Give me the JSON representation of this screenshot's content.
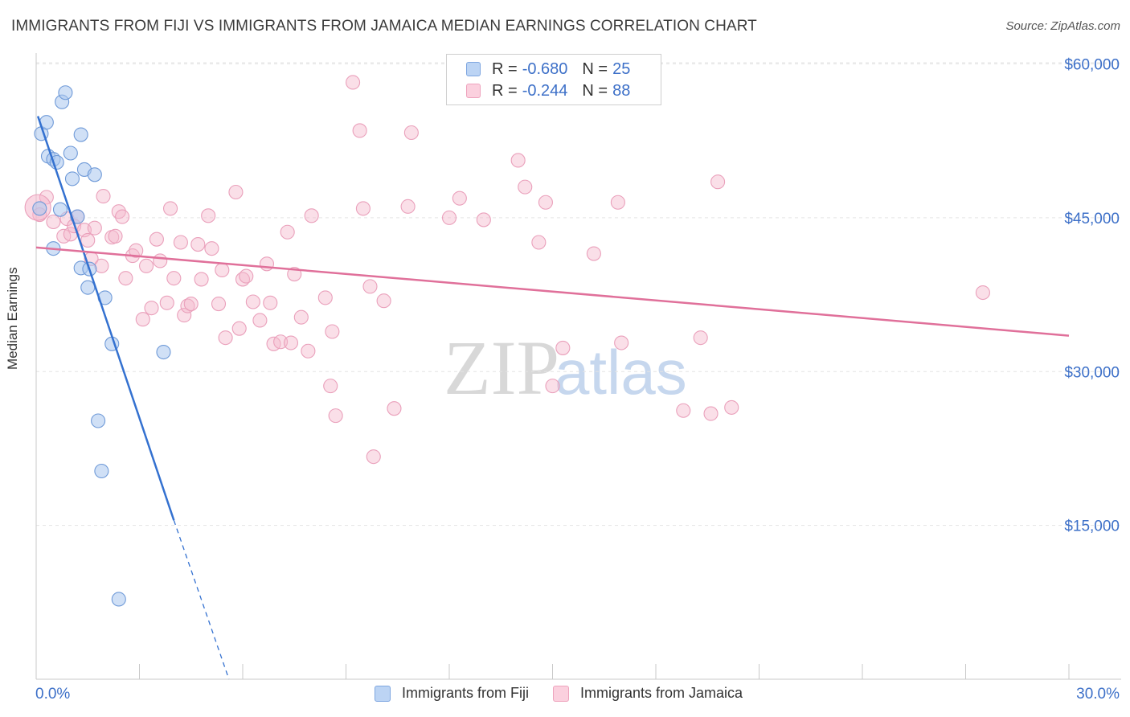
{
  "title": "IMMIGRANTS FROM FIJI VS IMMIGRANTS FROM JAMAICA MEDIAN EARNINGS CORRELATION CHART",
  "source": "Source: ZipAtlas.com",
  "watermark": {
    "zip": "ZIP",
    "atlas": "atlas"
  },
  "legend": {
    "fiji": {
      "r_label": "R =",
      "r_value": "-0.680",
      "n_label": "N =",
      "n_value": "25"
    },
    "jamaica": {
      "r_label": "R =",
      "r_value": "-0.244",
      "n_label": "N =",
      "n_value": "88"
    }
  },
  "chart_data": {
    "type": "scatter",
    "title": "IMMIGRANTS FROM FIJI VS IMMIGRANTS FROM JAMAICA MEDIAN EARNINGS CORRELATION CHART",
    "xlabel": "",
    "ylabel": "Median Earnings",
    "xlim": [
      0,
      30
    ],
    "ylim": [
      0,
      62000
    ],
    "x_tick_labels": [
      "0.0%",
      "30.0%"
    ],
    "y_ticks": [
      15000,
      30000,
      45000,
      60000
    ],
    "y_tick_labels": [
      "$15,000",
      "$30,000",
      "$45,000",
      "$60,000"
    ],
    "grid": true,
    "colors": {
      "fiji": "#a9c6ef",
      "fiji_line": "#3471d0",
      "jamaica": "#f5b7cc",
      "jamaica_line": "#e0709a",
      "tick_label": "#3d70c8"
    },
    "series": [
      {
        "name": "Immigrants from Fiji",
        "points": [
          [
            0.15,
            53200
          ],
          [
            0.3,
            54300
          ],
          [
            0.35,
            51000
          ],
          [
            0.5,
            50700
          ],
          [
            0.6,
            50400
          ],
          [
            0.75,
            56300
          ],
          [
            0.85,
            57200
          ],
          [
            1.0,
            51300
          ],
          [
            1.05,
            48800
          ],
          [
            1.3,
            53100
          ],
          [
            1.4,
            49700
          ],
          [
            1.7,
            49200
          ],
          [
            0.1,
            45900
          ],
          [
            0.7,
            45800
          ],
          [
            1.2,
            45100
          ],
          [
            0.5,
            42000
          ],
          [
            1.3,
            40100
          ],
          [
            1.55,
            40000
          ],
          [
            1.5,
            38200
          ],
          [
            2.0,
            37200
          ],
          [
            2.2,
            32700
          ],
          [
            3.7,
            31900
          ],
          [
            1.8,
            25200
          ],
          [
            1.9,
            20300
          ],
          [
            2.4,
            7800
          ]
        ],
        "trend": {
          "x0": 0.05,
          "y0": 54900,
          "x1": 4.0,
          "y1": 15500,
          "dash_to_x": 5.6,
          "dash_to_y": 0
        }
      },
      {
        "name": "Immigrants from Jamaica",
        "points": [
          [
            0.1,
            45300
          ],
          [
            0.3,
            47000
          ],
          [
            0.5,
            44600
          ],
          [
            0.8,
            43200
          ],
          [
            0.9,
            44900
          ],
          [
            1.0,
            43400
          ],
          [
            1.1,
            44200
          ],
          [
            1.2,
            45100
          ],
          [
            1.4,
            43800
          ],
          [
            1.5,
            42800
          ],
          [
            1.6,
            41000
          ],
          [
            1.7,
            44000
          ],
          [
            1.9,
            40300
          ],
          [
            1.95,
            47100
          ],
          [
            2.2,
            43100
          ],
          [
            2.3,
            43200
          ],
          [
            2.4,
            45600
          ],
          [
            2.5,
            45100
          ],
          [
            2.6,
            39100
          ],
          [
            2.8,
            41300
          ],
          [
            2.9,
            41800
          ],
          [
            3.1,
            35100
          ],
          [
            3.2,
            40300
          ],
          [
            3.35,
            36200
          ],
          [
            3.5,
            42900
          ],
          [
            3.6,
            40800
          ],
          [
            3.8,
            36700
          ],
          [
            3.9,
            45900
          ],
          [
            4.0,
            39100
          ],
          [
            4.2,
            42600
          ],
          [
            4.3,
            35500
          ],
          [
            4.4,
            36400
          ],
          [
            4.5,
            36600
          ],
          [
            4.7,
            42400
          ],
          [
            4.8,
            39000
          ],
          [
            5.0,
            45200
          ],
          [
            5.1,
            42000
          ],
          [
            5.3,
            36600
          ],
          [
            5.4,
            39900
          ],
          [
            5.5,
            33300
          ],
          [
            5.8,
            47500
          ],
          [
            5.9,
            34200
          ],
          [
            6.0,
            39000
          ],
          [
            6.1,
            39300
          ],
          [
            6.3,
            36800
          ],
          [
            6.5,
            35000
          ],
          [
            6.7,
            40500
          ],
          [
            6.8,
            36700
          ],
          [
            6.9,
            32700
          ],
          [
            7.1,
            32900
          ],
          [
            7.3,
            43600
          ],
          [
            7.4,
            32800
          ],
          [
            7.5,
            39500
          ],
          [
            7.7,
            35300
          ],
          [
            7.9,
            32000
          ],
          [
            8.0,
            45200
          ],
          [
            8.4,
            37200
          ],
          [
            8.55,
            28600
          ],
          [
            8.6,
            33900
          ],
          [
            8.7,
            25700
          ],
          [
            9.2,
            58200
          ],
          [
            9.4,
            53500
          ],
          [
            9.5,
            45900
          ],
          [
            9.7,
            38300
          ],
          [
            9.8,
            21700
          ],
          [
            10.1,
            36900
          ],
          [
            10.4,
            26400
          ],
          [
            10.8,
            46100
          ],
          [
            10.9,
            53300
          ],
          [
            12.0,
            45000
          ],
          [
            12.3,
            46900
          ],
          [
            13.0,
            44800
          ],
          [
            14.0,
            50600
          ],
          [
            14.2,
            48000
          ],
          [
            14.6,
            42600
          ],
          [
            14.8,
            46500
          ],
          [
            15.0,
            28600
          ],
          [
            15.3,
            32300
          ],
          [
            16.2,
            41500
          ],
          [
            16.9,
            46500
          ],
          [
            17.0,
            32800
          ],
          [
            18.8,
            26200
          ],
          [
            19.3,
            33300
          ],
          [
            19.6,
            25900
          ],
          [
            19.8,
            48500
          ],
          [
            20.2,
            26500
          ],
          [
            27.5,
            37700
          ],
          [
            0.05,
            46000
          ]
        ],
        "trend": {
          "x0": 0,
          "y0": 42100,
          "x1": 30,
          "y1": 33500
        }
      }
    ]
  }
}
